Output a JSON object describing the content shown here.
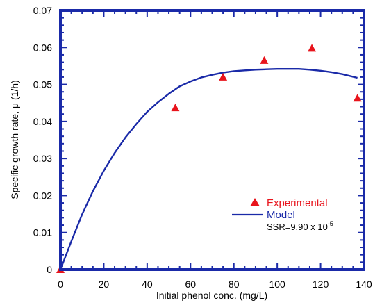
{
  "chart_data": {
    "type": "scatter",
    "xlabel": "Initial phenol conc. (mg/L)",
    "ylabel": "Specific growth rate, μ (1/h)",
    "xlim": [
      0,
      140
    ],
    "ylim": [
      0,
      0.07
    ],
    "x_ticks": [
      0,
      20,
      40,
      60,
      80,
      100,
      120,
      140
    ],
    "x_tick_labels": [
      "0",
      "20",
      "40",
      "60",
      "80",
      "100",
      "120",
      "140"
    ],
    "y_ticks": [
      0,
      0.01,
      0.02,
      0.03,
      0.04,
      0.05,
      0.06,
      0.07
    ],
    "y_tick_labels": [
      "0",
      "0.01",
      "0.02",
      "0.03",
      "0.04",
      "0.05",
      "0.06",
      "0.07"
    ],
    "grid": false,
    "legend_position": "lower-right",
    "series": [
      {
        "name": "Experimental",
        "type": "scatter",
        "marker": "triangle",
        "color": "#e8141c",
        "x": [
          0,
          53,
          75,
          94,
          116,
          137
        ],
        "y": [
          0,
          0.0437,
          0.052,
          0.0565,
          0.0598,
          0.0463
        ]
      },
      {
        "name": "Model",
        "type": "line",
        "color": "#1a2aa8",
        "x": [
          0,
          5,
          10,
          15,
          20,
          25,
          30,
          35,
          40,
          45,
          50,
          55,
          60,
          65,
          70,
          75,
          80,
          85,
          90,
          95,
          100,
          105,
          110,
          115,
          120,
          125,
          130,
          137
        ],
        "y": [
          0,
          0.0076,
          0.0149,
          0.0212,
          0.0267,
          0.0315,
          0.0357,
          0.0393,
          0.0426,
          0.0452,
          0.0475,
          0.0495,
          0.0508,
          0.0519,
          0.0526,
          0.0532,
          0.0536,
          0.0538,
          0.054,
          0.0541,
          0.0542,
          0.0542,
          0.0542,
          0.054,
          0.0537,
          0.0533,
          0.0528,
          0.0518
        ]
      }
    ],
    "annotation": {
      "text": "SSR=9.90 x 10",
      "superscript": "-5"
    },
    "colors": {
      "axis": "#1a2aa8",
      "experimental_label": "#e8141c",
      "model_label": "#1a2aa8",
      "text": "#000000"
    }
  }
}
